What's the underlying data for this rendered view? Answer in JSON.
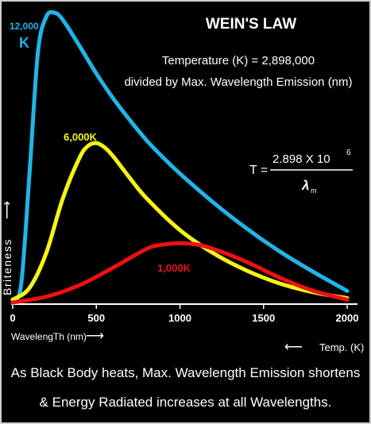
{
  "chart_data": {
    "type": "line",
    "title": "WEIN'S LAW",
    "equation_text": "Temperature (K) = 2,898,000",
    "equation_text_2": "divided by Max. Wavelength Emission (nm)",
    "formula": {
      "lhs": "T =",
      "numerator": "2.898 X 10",
      "exponent": "6",
      "denominator_symbol": "λ",
      "denominator_sub": "m"
    },
    "xlabel": "WavelengTh (nm)",
    "xlabel_arrow": "⟶",
    "ylabel": "Briteness",
    "ylabel_arrow": "⟶",
    "temp_label": "Temp. (K)",
    "temp_arrow": "⟵",
    "xlim": [
      0,
      2050
    ],
    "ylim": [
      0,
      1
    ],
    "x_ticks": [
      "0",
      "500",
      "1000",
      "1500",
      "2000"
    ],
    "grid": false,
    "series": [
      {
        "name_lines": [
          "12,000",
          "K"
        ],
        "color": "#22b4e6",
        "x": [
          0,
          50,
          100,
          150,
          200,
          250,
          300,
          400,
          500,
          600,
          700,
          800,
          900,
          1000,
          1200,
          1400,
          1600,
          1800,
          2000
        ],
        "y": [
          0.01,
          0.06,
          0.44,
          0.86,
          0.985,
          1.0,
          0.975,
          0.885,
          0.79,
          0.705,
          0.63,
          0.56,
          0.5,
          0.445,
          0.345,
          0.255,
          0.175,
          0.105,
          0.04
        ]
      },
      {
        "name_lines": [
          "6,000K"
        ],
        "color": "#f5f516",
        "x": [
          0,
          100,
          200,
          300,
          400,
          450,
          500,
          550,
          600,
          700,
          800,
          1000,
          1200,
          1400,
          1600,
          1800,
          2000
        ],
        "y": [
          0.01,
          0.05,
          0.17,
          0.36,
          0.5,
          0.54,
          0.55,
          0.535,
          0.505,
          0.43,
          0.36,
          0.25,
          0.17,
          0.11,
          0.065,
          0.035,
          0.015
        ]
      },
      {
        "name_lines": [
          "1,000K"
        ],
        "color": "#ee1111",
        "x": [
          0,
          200,
          400,
          600,
          800,
          900,
          1000,
          1100,
          1200,
          1400,
          1600,
          1800,
          2000
        ],
        "y": [
          0.0,
          0.02,
          0.06,
          0.12,
          0.185,
          0.2,
          0.205,
          0.2,
          0.185,
          0.14,
          0.085,
          0.04,
          0.01
        ]
      }
    ]
  },
  "footer": {
    "line1": "As Black Body heats, Max. Wavelength Emission shortens",
    "line2": "& Energy Radiated increases at all Wavelengths."
  }
}
